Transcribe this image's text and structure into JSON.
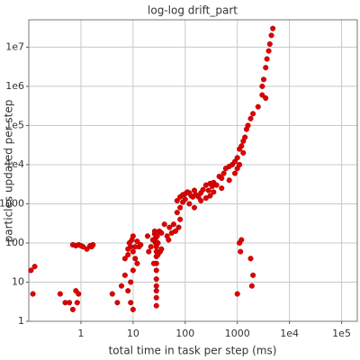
{
  "chart_data": {
    "type": "scatter",
    "title": "log-log drift_part",
    "x_label": "total time in task per step (ms)",
    "y_label": "particles updated per step",
    "x_scale": "log",
    "y_scale": "log",
    "grid": true,
    "color": "#e00000",
    "xlim": [
      0.1,
      200000
    ],
    "ylim": [
      1,
      50000000
    ],
    "xticks": [
      1,
      10,
      100,
      1000,
      {
        "value": 10000,
        "label": "1e4"
      },
      {
        "value": 100000,
        "label": "1e5"
      }
    ],
    "yticks": [
      1,
      10,
      100,
      1000,
      {
        "value": 10000,
        "label": "1e4"
      },
      {
        "value": 100000,
        "label": "1e5"
      },
      {
        "value": 1000000,
        "label": "1e6"
      },
      {
        "value": 10000000,
        "label": "1e7"
      }
    ],
    "x": [
      0.11,
      0.12,
      0.13,
      0.4,
      0.5,
      0.6,
      0.7,
      0.8,
      0.9,
      0.85,
      0.7,
      0.8,
      0.9,
      1.0,
      1.1,
      1.3,
      1.5,
      1.7,
      1.6,
      4,
      5,
      6,
      7,
      8,
      9,
      8.5,
      10,
      9.5,
      10,
      11,
      12,
      10,
      9,
      8,
      9,
      10,
      13,
      14,
      12,
      8,
      7,
      11,
      28,
      28,
      28,
      28,
      28,
      28,
      28,
      28,
      28,
      28,
      27,
      27,
      26,
      26,
      29,
      30,
      30,
      25,
      24,
      22,
      20,
      19,
      32,
      33,
      35,
      35,
      40,
      45,
      50,
      55,
      48,
      60,
      70,
      70,
      80,
      80,
      90,
      100,
      110,
      120,
      130,
      140,
      150,
      160,
      180,
      200,
      220,
      250,
      280,
      300,
      330,
      350,
      400,
      450,
      500,
      550,
      600,
      700,
      800,
      900,
      1000,
      1100,
      1200,
      1300,
      1400,
      1500,
      1600,
      1800,
      2000,
      2500,
      3000,
      3200,
      3500,
      4000,
      4200,
      4500,
      4800,
      3700,
      3500,
      3000,
      200,
      250,
      300,
      350,
      500,
      700,
      900,
      1000,
      1100,
      1300,
      150,
      120,
      100,
      90,
      80,
      75,
      65,
      1000,
      1100,
      1200,
      1150,
      1800,
      2000,
      1900
    ],
    "values": [
      20,
      5,
      25,
      5,
      3,
      3,
      2,
      6,
      5,
      3,
      90,
      85,
      90,
      85,
      80,
      70,
      85,
      90,
      80,
      5,
      3,
      8,
      15,
      50,
      80,
      100,
      150,
      120,
      60,
      40,
      30,
      20,
      10,
      6,
      3,
      2,
      80,
      90,
      110,
      70,
      40,
      80,
      2.5,
      4,
      6,
      8,
      12,
      20,
      30,
      45,
      60,
      80,
      100,
      130,
      170,
      200,
      150,
      100,
      50,
      30,
      120,
      80,
      60,
      150,
      200,
      60,
      70,
      180,
      300,
      150,
      250,
      180,
      120,
      300,
      600,
      1200,
      1500,
      800,
      1700,
      1800,
      2000,
      1900,
      1600,
      1500,
      2200,
      1700,
      1500,
      1900,
      2300,
      3000,
      2200,
      3300,
      2800,
      3500,
      3000,
      5000,
      4500,
      6000,
      8000,
      9000,
      10000,
      12000,
      15000,
      25000,
      30000,
      40000,
      50000,
      80000,
      100000,
      150000,
      200000,
      300000,
      1000000,
      1500000,
      3000000,
      8000000,
      12000000,
      20000000,
      30000000,
      5000000,
      500000,
      600000,
      1200,
      1400,
      1600,
      2000,
      2500,
      4000,
      6000,
      8000,
      10000,
      20000,
      800,
      1000,
      1300,
      1100,
      400,
      250,
      200,
      5,
      100,
      120,
      60,
      40,
      15,
      8
    ]
  }
}
